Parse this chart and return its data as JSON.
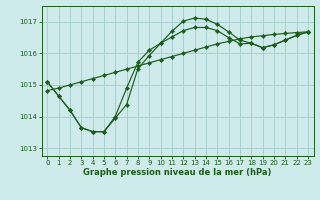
{
  "title": "Graphe pression niveau de la mer (hPa)",
  "bg_color": "#ceeaea",
  "grid_color": "#a8d0d0",
  "line_color": "#1a5e1a",
  "xlim": [
    -0.5,
    23.5
  ],
  "ylim": [
    1012.75,
    1017.5
  ],
  "yticks": [
    1013,
    1014,
    1015,
    1016,
    1017
  ],
  "xticks": [
    0,
    1,
    2,
    3,
    4,
    5,
    6,
    7,
    8,
    9,
    10,
    11,
    12,
    13,
    14,
    15,
    16,
    17,
    18,
    19,
    20,
    21,
    22,
    23
  ],
  "line_a_x": [
    0,
    1,
    2,
    3,
    4,
    5,
    6,
    7,
    8,
    9,
    10,
    11,
    12,
    13,
    14,
    15,
    16,
    17,
    18,
    19,
    20,
    21,
    22,
    23
  ],
  "line_a_y": [
    1014.82,
    1014.9,
    1015.0,
    1015.1,
    1015.2,
    1015.3,
    1015.4,
    1015.5,
    1015.6,
    1015.7,
    1015.8,
    1015.9,
    1016.0,
    1016.1,
    1016.2,
    1016.3,
    1016.38,
    1016.46,
    1016.52,
    1016.56,
    1016.6,
    1016.63,
    1016.66,
    1016.68
  ],
  "line_b_x": [
    0,
    1,
    2,
    3,
    4,
    5,
    6,
    7,
    8,
    9,
    10,
    11,
    12,
    13,
    14,
    15,
    16,
    17,
    18,
    19,
    20,
    21,
    22,
    23
  ],
  "line_b_y": [
    1015.1,
    1014.65,
    1014.2,
    1013.65,
    1013.52,
    1013.52,
    1013.95,
    1014.38,
    1015.52,
    1015.93,
    1016.32,
    1016.7,
    1017.02,
    1017.12,
    1017.08,
    1016.92,
    1016.68,
    1016.42,
    1016.32,
    1016.18,
    1016.27,
    1016.42,
    1016.57,
    1016.68
  ],
  "line_c_x": [
    0,
    1,
    2,
    3,
    4,
    5,
    6,
    7,
    8,
    9,
    10,
    11,
    12,
    13,
    14,
    15,
    16,
    17,
    18,
    19,
    20,
    21,
    22,
    23
  ],
  "line_c_y": [
    1015.1,
    1014.65,
    1014.2,
    1013.65,
    1013.52,
    1013.52,
    1014.0,
    1014.9,
    1015.72,
    1016.1,
    1016.32,
    1016.52,
    1016.72,
    1016.82,
    1016.82,
    1016.72,
    1016.5,
    1016.3,
    1016.32,
    1016.18,
    1016.27,
    1016.42,
    1016.57,
    1016.68
  ],
  "marker": "D",
  "markersize": 2.2,
  "linewidth": 0.85
}
